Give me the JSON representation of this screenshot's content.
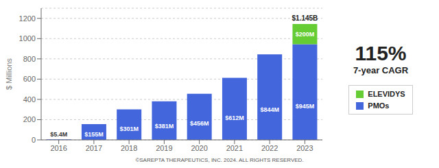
{
  "chart_data": {
    "type": "bar",
    "stacked": true,
    "categories": [
      "2016",
      "2017",
      "2018",
      "2019",
      "2020",
      "2021",
      "2022",
      "2023"
    ],
    "series": [
      {
        "name": "PMOs",
        "color": "#4466dd",
        "values": [
          5.4,
          155,
          301,
          381,
          456,
          612,
          844,
          945
        ],
        "value_labels": [
          "$5.4M",
          "$155M",
          "$301M",
          "$381M",
          "$456M",
          "$612M",
          "$844M",
          "$945M"
        ]
      },
      {
        "name": "ELEVIDYS",
        "color": "#66cc33",
        "values": [
          0,
          0,
          0,
          0,
          0,
          0,
          0,
          200
        ],
        "value_labels": [
          null,
          null,
          null,
          null,
          null,
          null,
          null,
          "$200M"
        ]
      }
    ],
    "ylabel": "$ Millions",
    "ylim": [
      0,
      1300
    ],
    "yticks": [
      0,
      200,
      400,
      600,
      800,
      1000,
      1200
    ],
    "grid": true,
    "data_labels": true,
    "legend": "right",
    "annotations": [
      "$1.145B",
      "115%",
      "7-year CAGR",
      "©SAREPTA THERAPEUTICS, INC. 2024.  ALL RIGHTS RESERVED."
    ]
  }
}
